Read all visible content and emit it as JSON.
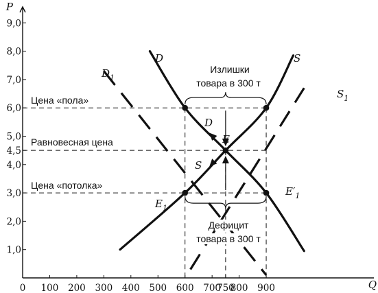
{
  "chart_data": {
    "type": "line",
    "xlabel": "Q",
    "ylabel": "P",
    "xlim": [
      0,
      1000
    ],
    "ylim": [
      0,
      9.5
    ],
    "x_ticks": [
      0,
      100,
      200,
      300,
      400,
      500,
      600,
      700,
      750,
      800,
      900
    ],
    "x_tick_labels": [
      "0",
      "100",
      "200",
      "300",
      "400",
      "500",
      "600",
      "700",
      "750",
      "800",
      "900"
    ],
    "y_ticks": [
      1,
      2,
      3,
      4,
      4.5,
      5,
      6,
      7,
      8,
      9
    ],
    "y_tick_labels": [
      "1,0",
      "2,0",
      "3,0",
      "4,0",
      "4,5",
      "5,0",
      "6,0",
      "7,0",
      "8,0",
      "9,0"
    ],
    "series": [
      {
        "name": "D",
        "style": "solid",
        "points": [
          [
            470,
            8.0
          ],
          [
            600,
            6.0
          ],
          [
            750,
            4.5
          ],
          [
            900,
            3.0
          ],
          [
            1040,
            0.95
          ]
        ]
      },
      {
        "name": "S",
        "style": "solid",
        "points": [
          [
            360,
            1.0
          ],
          [
            600,
            3.0
          ],
          [
            750,
            4.5
          ],
          [
            900,
            6.0
          ],
          [
            1000,
            7.85
          ]
        ]
      },
      {
        "name": "D1",
        "style": "dashed",
        "points": [
          [
            300,
            7.3
          ],
          [
            600,
            3.0
          ],
          [
            900,
            0.1
          ]
        ]
      },
      {
        "name": "S1",
        "style": "dashed",
        "points": [
          [
            620,
            0.3
          ],
          [
            900,
            3.0
          ],
          [
            1040,
            6.7
          ]
        ]
      }
    ],
    "points": [
      {
        "label": "E",
        "x": 750,
        "y": 4.5
      },
      {
        "label": "E1",
        "x": 600,
        "y": 3.0
      },
      {
        "label": "E′1",
        "x": 900,
        "y": 3.0
      },
      {
        "label": "",
        "x": 600,
        "y": 6.0
      },
      {
        "label": "",
        "x": 900,
        "y": 6.0
      }
    ],
    "price_lines": [
      {
        "label": "Цена «пола»",
        "y": 6.0
      },
      {
        "label": "Равновесная цена",
        "y": 4.5
      },
      {
        "label": "Цена «потолка»",
        "y": 3.0
      }
    ],
    "annotations": [
      {
        "lines": [
          "Излишки",
          "товара в 300 т"
        ],
        "from_x": 600,
        "to_x": 900,
        "y": 6.0
      },
      {
        "lines": [
          "Дефицит",
          "товара в 300 т"
        ],
        "from_x": 600,
        "to_x": 900,
        "y": 3.0
      }
    ],
    "arrow_labels": [
      "D",
      "S"
    ],
    "legend": "none",
    "grid": false
  }
}
